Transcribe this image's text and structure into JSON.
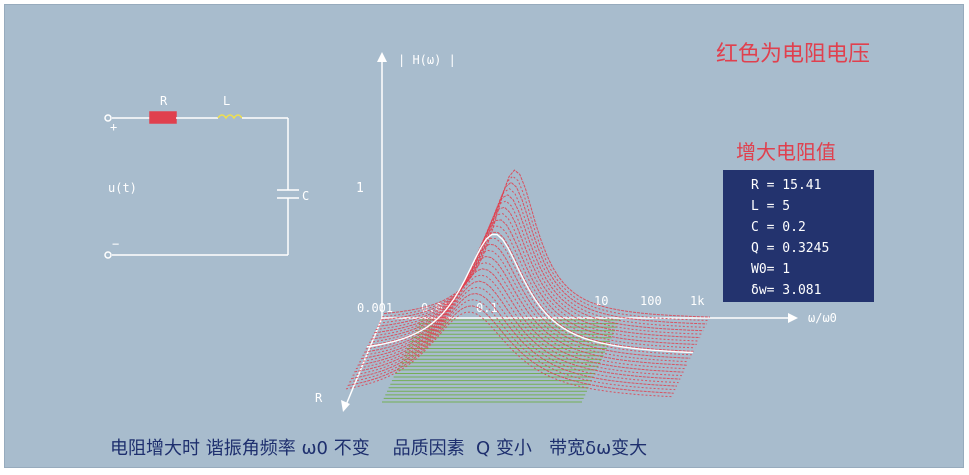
{
  "title": "红色为电阻电压",
  "subtitle": "增大电阻值",
  "circuit": {
    "r_label": "R",
    "l_label": "L",
    "c_label": "C",
    "source_label": "u(t)",
    "minus_label": "−"
  },
  "plot": {
    "y_axis_label": "| H(ω) |",
    "y_tick_1": "1",
    "x_axis_label": "ω/ω0",
    "depth_axis_label": "R",
    "x_ticks": [
      "0.001",
      "0.01",
      "0.1",
      "10",
      "100",
      "1k"
    ]
  },
  "params": [
    "R = 15.41",
    "L = 5",
    "C = 0.2",
    "Q = 0.3245",
    "W0= 1",
    "δw= 3.081"
  ],
  "caption": "电阻增大时 谐振角频率 ω0 不变    品质因素  Q 变小   带宽δω变大",
  "colors": {
    "background": "#a8bccd",
    "resistor_voltage": "#e0404e",
    "fill_lines": "#6fae4a",
    "panel": "#23336e",
    "caption_text": "#1e2f6e"
  }
}
